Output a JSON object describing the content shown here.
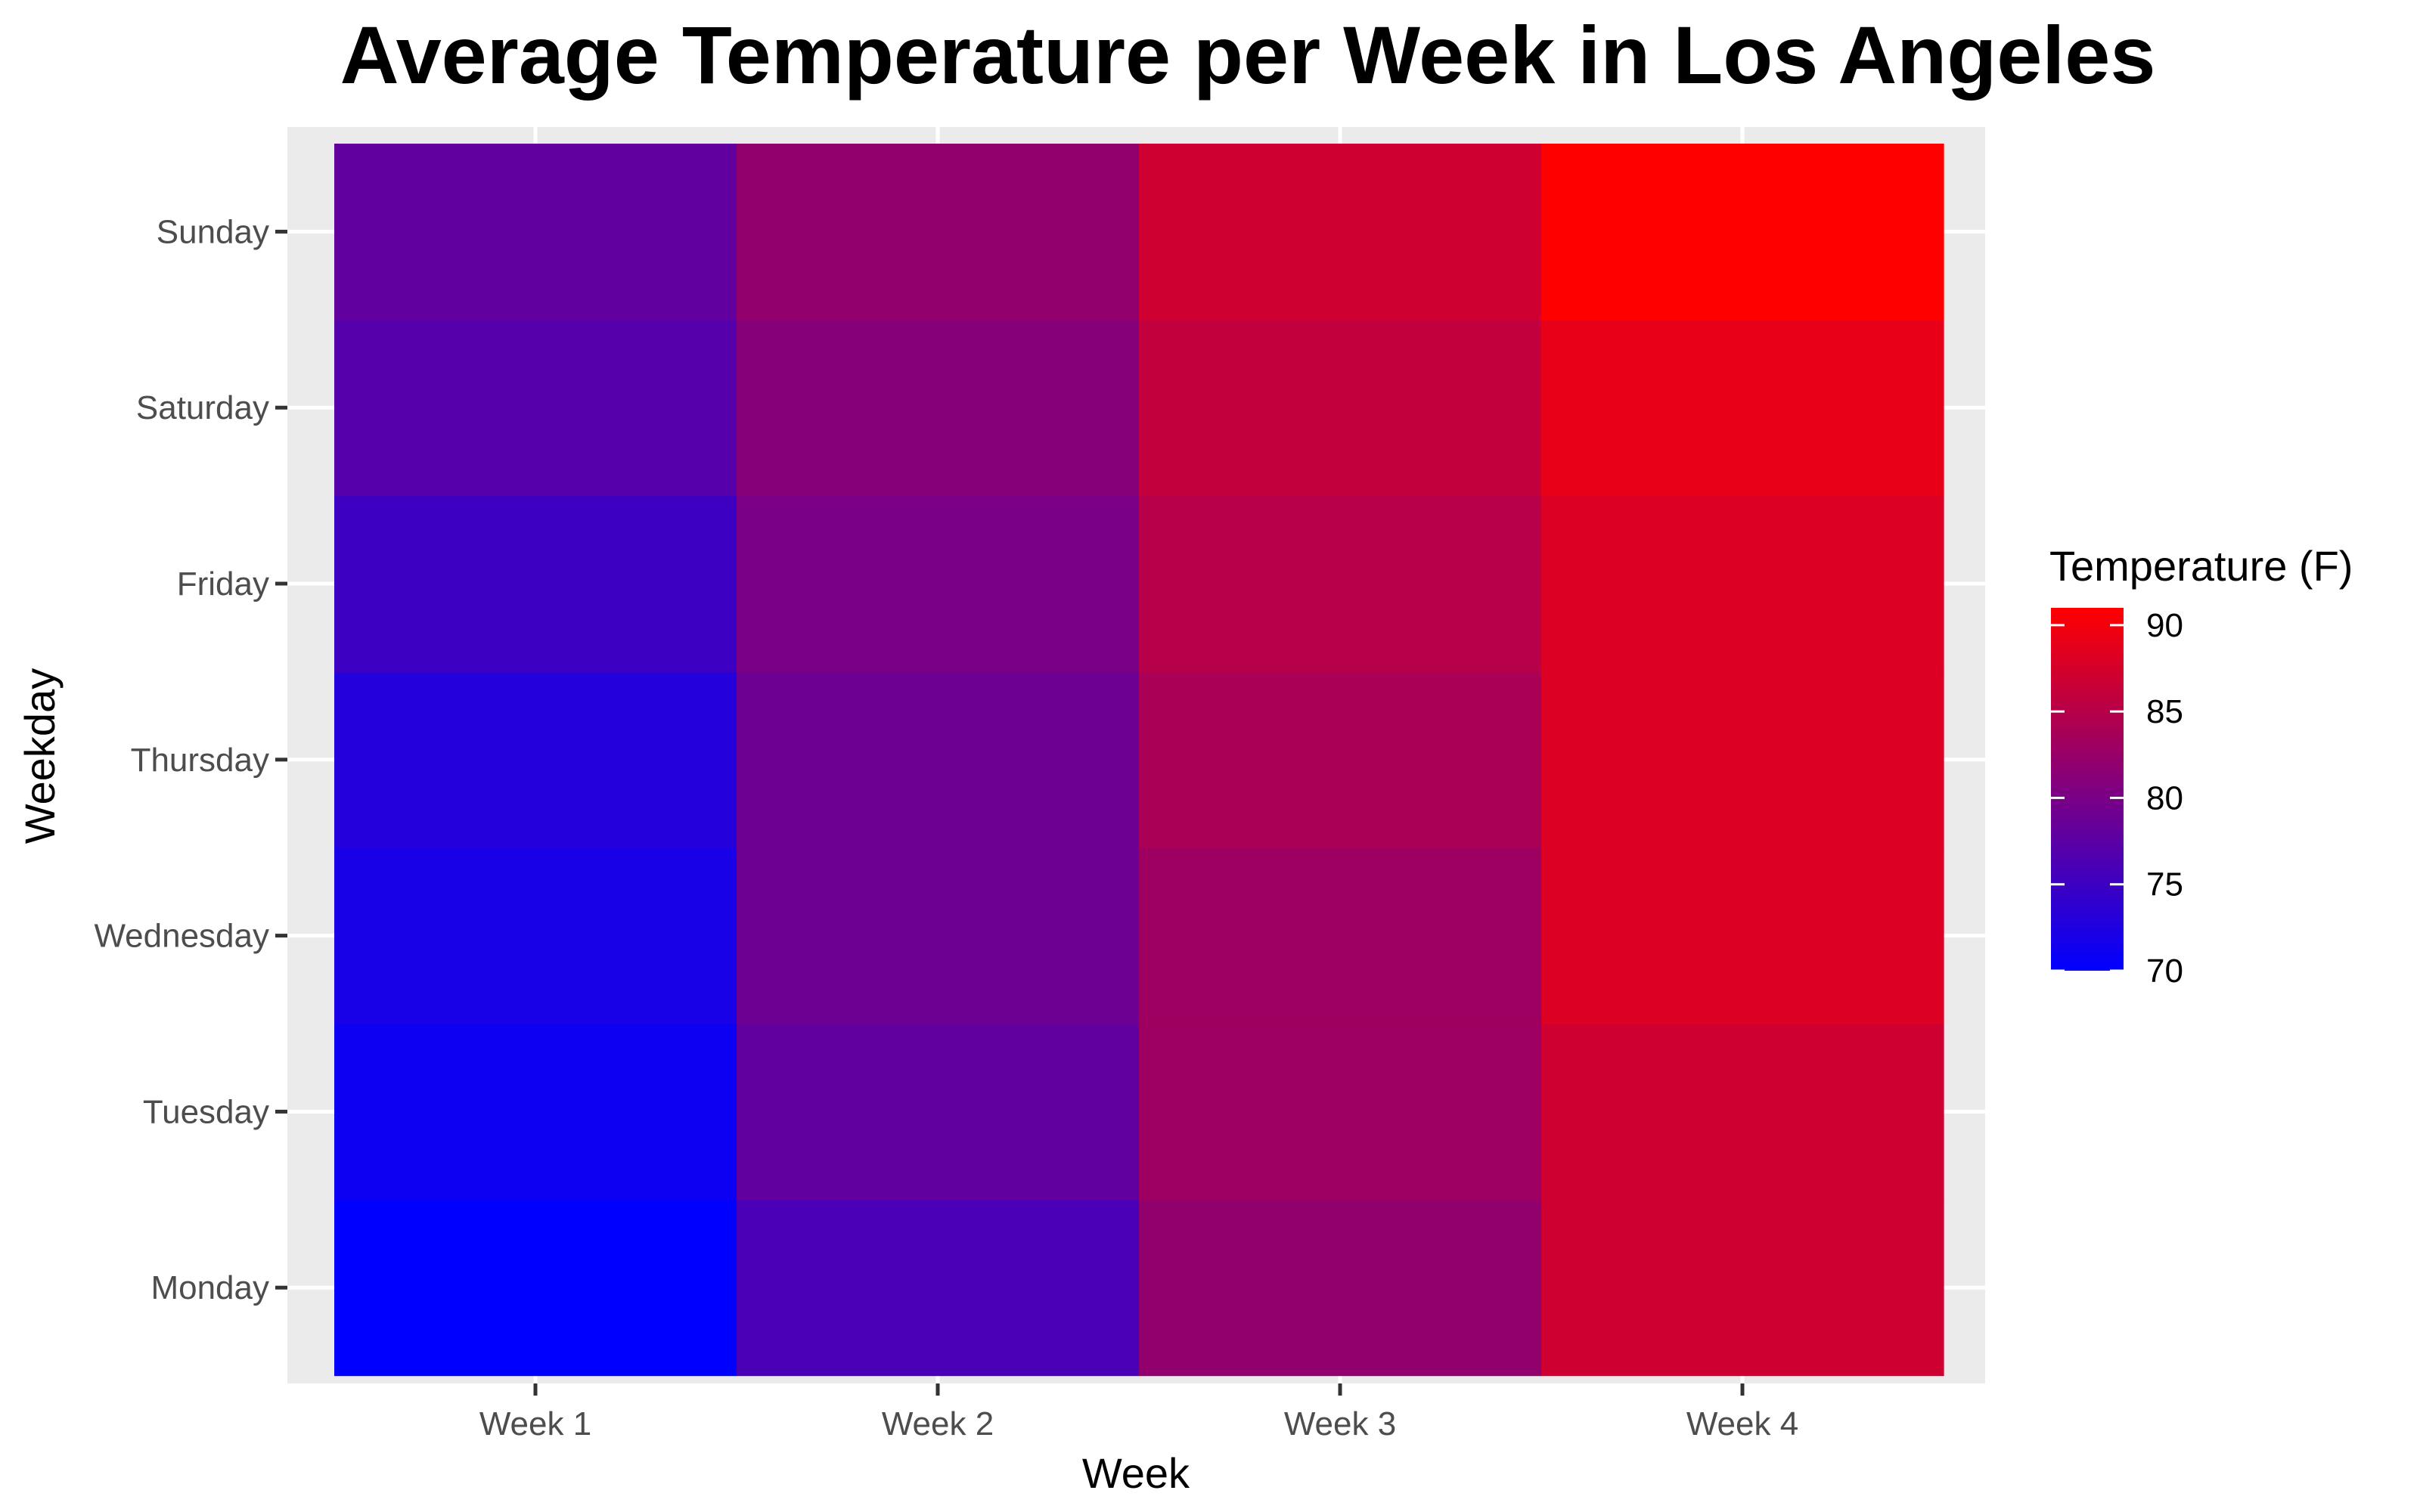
{
  "chart_data": {
    "type": "heatmap",
    "title": "Average Temperature per Week in Los Angeles",
    "xlabel": "Week",
    "ylabel": "Weekday",
    "x_categories": [
      "Week 1",
      "Week 2",
      "Week 3",
      "Week 4"
    ],
    "y_categories": [
      "Monday",
      "Tuesday",
      "Wednesday",
      "Thursday",
      "Friday",
      "Saturday",
      "Sunday"
    ],
    "values": [
      [
        70,
        76,
        82,
        87
      ],
      [
        71,
        78,
        83,
        87
      ],
      [
        72,
        79,
        83,
        88
      ],
      [
        73,
        79,
        84,
        88
      ],
      [
        75,
        80,
        85,
        88
      ],
      [
        77,
        81,
        86,
        89
      ],
      [
        78,
        82,
        87,
        91
      ]
    ],
    "value_range": [
      70,
      91
    ],
    "color_low": "#0000ff",
    "color_high": "#ff0000",
    "legend": {
      "title": "Temperature (F)",
      "ticks": [
        70,
        75,
        80,
        85,
        90
      ],
      "placement": "right"
    },
    "grid": true,
    "panel_background": "#ebebeb"
  }
}
